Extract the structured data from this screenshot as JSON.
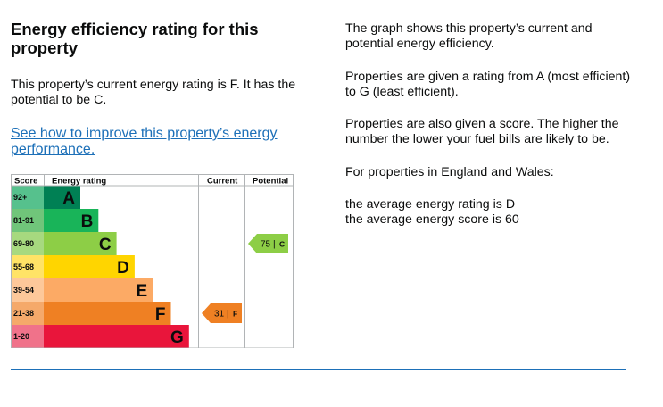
{
  "heading": "Energy efficiency rating for this property",
  "summary": "This property’s current energy rating is F. It has the potential to be C.",
  "improve_link": "See how to improve this property’s energy performance.",
  "info": {
    "p1": "The graph shows this property’s current and potential energy efficiency.",
    "p2": "Properties are given a rating from A (most efficient) to G (least efficient).",
    "p3": "Properties are also given a score. The higher the number the lower your fuel bills are likely to be.",
    "p4": "For properties in England and Wales:",
    "avg_rating": "the average energy rating is D",
    "avg_score": "the average energy score is 60"
  },
  "chart_data": {
    "type": "bar",
    "headers": {
      "score": "Score",
      "rating": "Energy rating",
      "current": "Current",
      "potential": "Potential"
    },
    "bands": [
      {
        "range": "92+",
        "letter": "A",
        "color": "#008054",
        "score_color": "#56c18d"
      },
      {
        "range": "81-91",
        "letter": "B",
        "color": "#19b459",
        "score_color": "#70c57a"
      },
      {
        "range": "69-80",
        "letter": "C",
        "color": "#8dce46",
        "score_color": "#a7d97f"
      },
      {
        "range": "55-68",
        "letter": "D",
        "color": "#ffd500",
        "score_color": "#ffe366"
      },
      {
        "range": "39-54",
        "letter": "E",
        "color": "#fcaa65",
        "score_color": "#fdc89a"
      },
      {
        "range": "21-38",
        "letter": "F",
        "color": "#ef8023",
        "score_color": "#f5a96a"
      },
      {
        "range": "1-20",
        "letter": "G",
        "color": "#e9153b",
        "score_color": "#f0728a"
      }
    ],
    "current": {
      "score": "31",
      "letter": "F",
      "band": "F",
      "color": "#ef8023"
    },
    "potential": {
      "score": "75",
      "letter": "C",
      "band": "C",
      "color": "#8dce46"
    }
  }
}
